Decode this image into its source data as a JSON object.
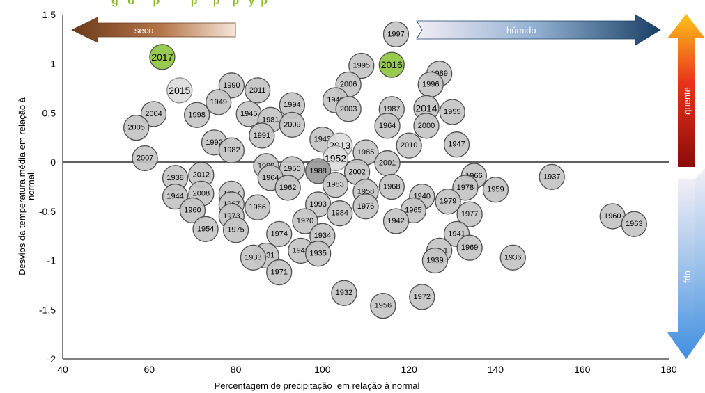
{
  "chart_data": {
    "type": "scatter",
    "title": "g   d      p          p     p    p   y  p",
    "xlabel": "Percentagem de precipitação  em relação à normal",
    "ylabel_lines": [
      "Desvios da temperatura média  em relação à",
      "normal"
    ],
    "xlim": [
      40,
      180
    ],
    "ylim": [
      -2,
      1.5
    ],
    "xticks": [
      40,
      60,
      80,
      100,
      120,
      140,
      160,
      180
    ],
    "yticks": [
      -2,
      -1.5,
      -1,
      -0.5,
      0,
      0.5,
      1,
      1.5
    ],
    "ytick_labels": [
      "-2",
      "-1,5",
      "-1",
      "-0,5",
      "0",
      "0,5",
      "1",
      "1,5"
    ],
    "grid": false,
    "zero_line": true,
    "colors": {
      "default": "#c4c4c4",
      "highlight": "#8ec63f",
      "edge": "#4d4d4d"
    },
    "annotations": {
      "dry": "seco",
      "wet": "húmido",
      "hot": "quente",
      "cold": "frio"
    },
    "points": [
      {
        "label": "1997",
        "x": 117,
        "y": 1.3
      },
      {
        "label": "2017",
        "x": 63,
        "y": 1.07,
        "style": "green"
      },
      {
        "label": "2016",
        "x": 116,
        "y": 0.99,
        "style": "green"
      },
      {
        "label": "1995",
        "x": 109,
        "y": 0.98
      },
      {
        "label": "1989",
        "x": 127,
        "y": 0.9
      },
      {
        "label": "1996",
        "x": 125,
        "y": 0.79
      },
      {
        "label": "2006",
        "x": 106,
        "y": 0.79
      },
      {
        "label": "2015",
        "x": 67,
        "y": 0.73,
        "style": "light"
      },
      {
        "label": "1990",
        "x": 79,
        "y": 0.78
      },
      {
        "label": "2011",
        "x": 85,
        "y": 0.73
      },
      {
        "label": "1949",
        "x": 76,
        "y": 0.61
      },
      {
        "label": "1998",
        "x": 71,
        "y": 0.48
      },
      {
        "label": "1948",
        "x": 103,
        "y": 0.63
      },
      {
        "label": "1994",
        "x": 93,
        "y": 0.58
      },
      {
        "label": "1945",
        "x": 83,
        "y": 0.49
      },
      {
        "label": "1981",
        "x": 88,
        "y": 0.43
      },
      {
        "label": "2003",
        "x": 106,
        "y": 0.54
      },
      {
        "label": "1987",
        "x": 116,
        "y": 0.54
      },
      {
        "label": "2014",
        "x": 124,
        "y": 0.55
      },
      {
        "label": "1955",
        "x": 130,
        "y": 0.51
      },
      {
        "label": "2004",
        "x": 61,
        "y": 0.49
      },
      {
        "label": "2005",
        "x": 57,
        "y": 0.35
      },
      {
        "label": "2009",
        "x": 93,
        "y": 0.38
      },
      {
        "label": "1964",
        "x": 115,
        "y": 0.37
      },
      {
        "label": "2000",
        "x": 124,
        "y": 0.37
      },
      {
        "label": "1991",
        "x": 86,
        "y": 0.27
      },
      {
        "label": "1992",
        "x": 75,
        "y": 0.2
      },
      {
        "label": "1982",
        "x": 79,
        "y": 0.12
      },
      {
        "label": "1943",
        "x": 100,
        "y": 0.23
      },
      {
        "label": "2013",
        "x": 104,
        "y": 0.17,
        "style": "light"
      },
      {
        "label": "1947",
        "x": 131,
        "y": 0.18
      },
      {
        "label": "2010",
        "x": 120,
        "y": 0.17
      },
      {
        "label": "1952",
        "x": 103,
        "y": 0.04,
        "style": "light"
      },
      {
        "label": "1985",
        "x": 110,
        "y": 0.1
      },
      {
        "label": "2001",
        "x": 115,
        "y": -0.01
      },
      {
        "label": "2007",
        "x": 59,
        "y": 0.04
      },
      {
        "label": "1999",
        "x": 87,
        "y": -0.04
      },
      {
        "label": "1950",
        "x": 93,
        "y": -0.07
      },
      {
        "label": "1988",
        "x": 99,
        "y": -0.09,
        "style": "dark"
      },
      {
        "label": "2002",
        "x": 108,
        "y": -0.1
      },
      {
        "label": "1964",
        "x": 88,
        "y": -0.16
      },
      {
        "label": "2012",
        "x": 72,
        "y": -0.13
      },
      {
        "label": "1938",
        "x": 66,
        "y": -0.16
      },
      {
        "label": "1966",
        "x": 135,
        "y": -0.14
      },
      {
        "label": "1937",
        "x": 153,
        "y": -0.15
      },
      {
        "label": "1962",
        "x": 92,
        "y": -0.26
      },
      {
        "label": "1983",
        "x": 103,
        "y": -0.23
      },
      {
        "label": "1968",
        "x": 116,
        "y": -0.25
      },
      {
        "label": "1958",
        "x": 110,
        "y": -0.3
      },
      {
        "label": "1978",
        "x": 133,
        "y": -0.26
      },
      {
        "label": "1959",
        "x": 140,
        "y": -0.28
      },
      {
        "label": "1944",
        "x": 66,
        "y": -0.35
      },
      {
        "label": "2008",
        "x": 72,
        "y": -0.32
      },
      {
        "label": "1957",
        "x": 79,
        "y": -0.32
      },
      {
        "label": "1940",
        "x": 123,
        "y": -0.35
      },
      {
        "label": "1979",
        "x": 129,
        "y": -0.4
      },
      {
        "label": "1960",
        "x": 70,
        "y": -0.49
      },
      {
        "label": "1967",
        "x": 79,
        "y": -0.43
      },
      {
        "label": "1986",
        "x": 85,
        "y": -0.46
      },
      {
        "label": "1993",
        "x": 99,
        "y": -0.43
      },
      {
        "label": "1976",
        "x": 110,
        "y": -0.45
      },
      {
        "label": "1965",
        "x": 121,
        "y": -0.49
      },
      {
        "label": "1984",
        "x": 104,
        "y": -0.52
      },
      {
        "label": "1977",
        "x": 134,
        "y": -0.53
      },
      {
        "label": "1960",
        "x": 167,
        "y": -0.55
      },
      {
        "label": "1963",
        "x": 172,
        "y": -0.63
      },
      {
        "label": "1973",
        "x": 79,
        "y": -0.55
      },
      {
        "label": "1970",
        "x": 96,
        "y": -0.6
      },
      {
        "label": "1942",
        "x": 117,
        "y": -0.6
      },
      {
        "label": "1954",
        "x": 73,
        "y": -0.68
      },
      {
        "label": "1975",
        "x": 80,
        "y": -0.69
      },
      {
        "label": "1974",
        "x": 90,
        "y": -0.73
      },
      {
        "label": "1934",
        "x": 100,
        "y": -0.75
      },
      {
        "label": "1941",
        "x": 131,
        "y": -0.73
      },
      {
        "label": "1946",
        "x": 95,
        "y": -0.9
      },
      {
        "label": "1935",
        "x": 99,
        "y": -0.93
      },
      {
        "label": "1951",
        "x": 127,
        "y": -0.9
      },
      {
        "label": "1969",
        "x": 134,
        "y": -0.87
      },
      {
        "label": "1931",
        "x": 87,
        "y": -0.95
      },
      {
        "label": "1933",
        "x": 84,
        "y": -0.97
      },
      {
        "label": "1939",
        "x": 126,
        "y": -1.0
      },
      {
        "label": "1936",
        "x": 144,
        "y": -0.97
      },
      {
        "label": "1971",
        "x": 90,
        "y": -1.12
      },
      {
        "label": "1932",
        "x": 105,
        "y": -1.33
      },
      {
        "label": "1972",
        "x": 123,
        "y": -1.37
      },
      {
        "label": "1956",
        "x": 114,
        "y": -1.46
      }
    ]
  }
}
